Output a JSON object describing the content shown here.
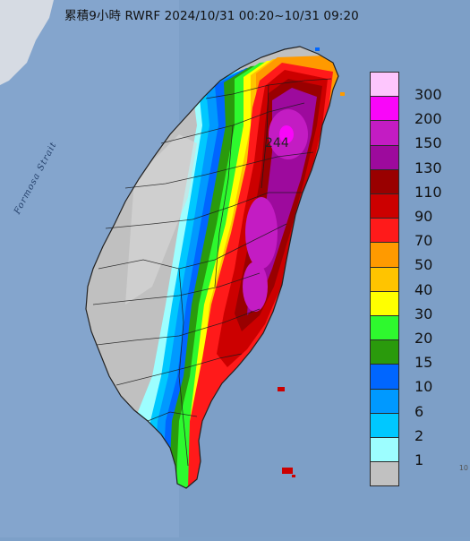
{
  "title": "累積9小時 RWRF 2024/10/31 00:20~10/31 09:20",
  "strait_label": "Formosa Strait",
  "peak_value": "244",
  "corner_text": "10",
  "legend": {
    "items": [
      {
        "label": "300",
        "color": "#fdc6fd"
      },
      {
        "label": "200",
        "color": "#f906f9"
      },
      {
        "label": "150",
        "color": "#c31cc3"
      },
      {
        "label": "130",
        "color": "#9d0a9d"
      },
      {
        "label": "110",
        "color": "#990000"
      },
      {
        "label": "90",
        "color": "#cc0000"
      },
      {
        "label": "70",
        "color": "#ff1a1a"
      },
      {
        "label": "50",
        "color": "#ff9a00"
      },
      {
        "label": "40",
        "color": "#ffc400"
      },
      {
        "label": "30",
        "color": "#ffff00"
      },
      {
        "label": "20",
        "color": "#2ef92e"
      },
      {
        "label": "15",
        "color": "#2a9a0c"
      },
      {
        "label": "10",
        "color": "#0066ff"
      },
      {
        "label": "6",
        "color": "#0099ff"
      },
      {
        "label": "2",
        "color": "#00c8ff"
      },
      {
        "label": "1",
        "color": "#9dfeff"
      },
      {
        "label": "",
        "color": "#c1c1c1"
      }
    ]
  }
}
